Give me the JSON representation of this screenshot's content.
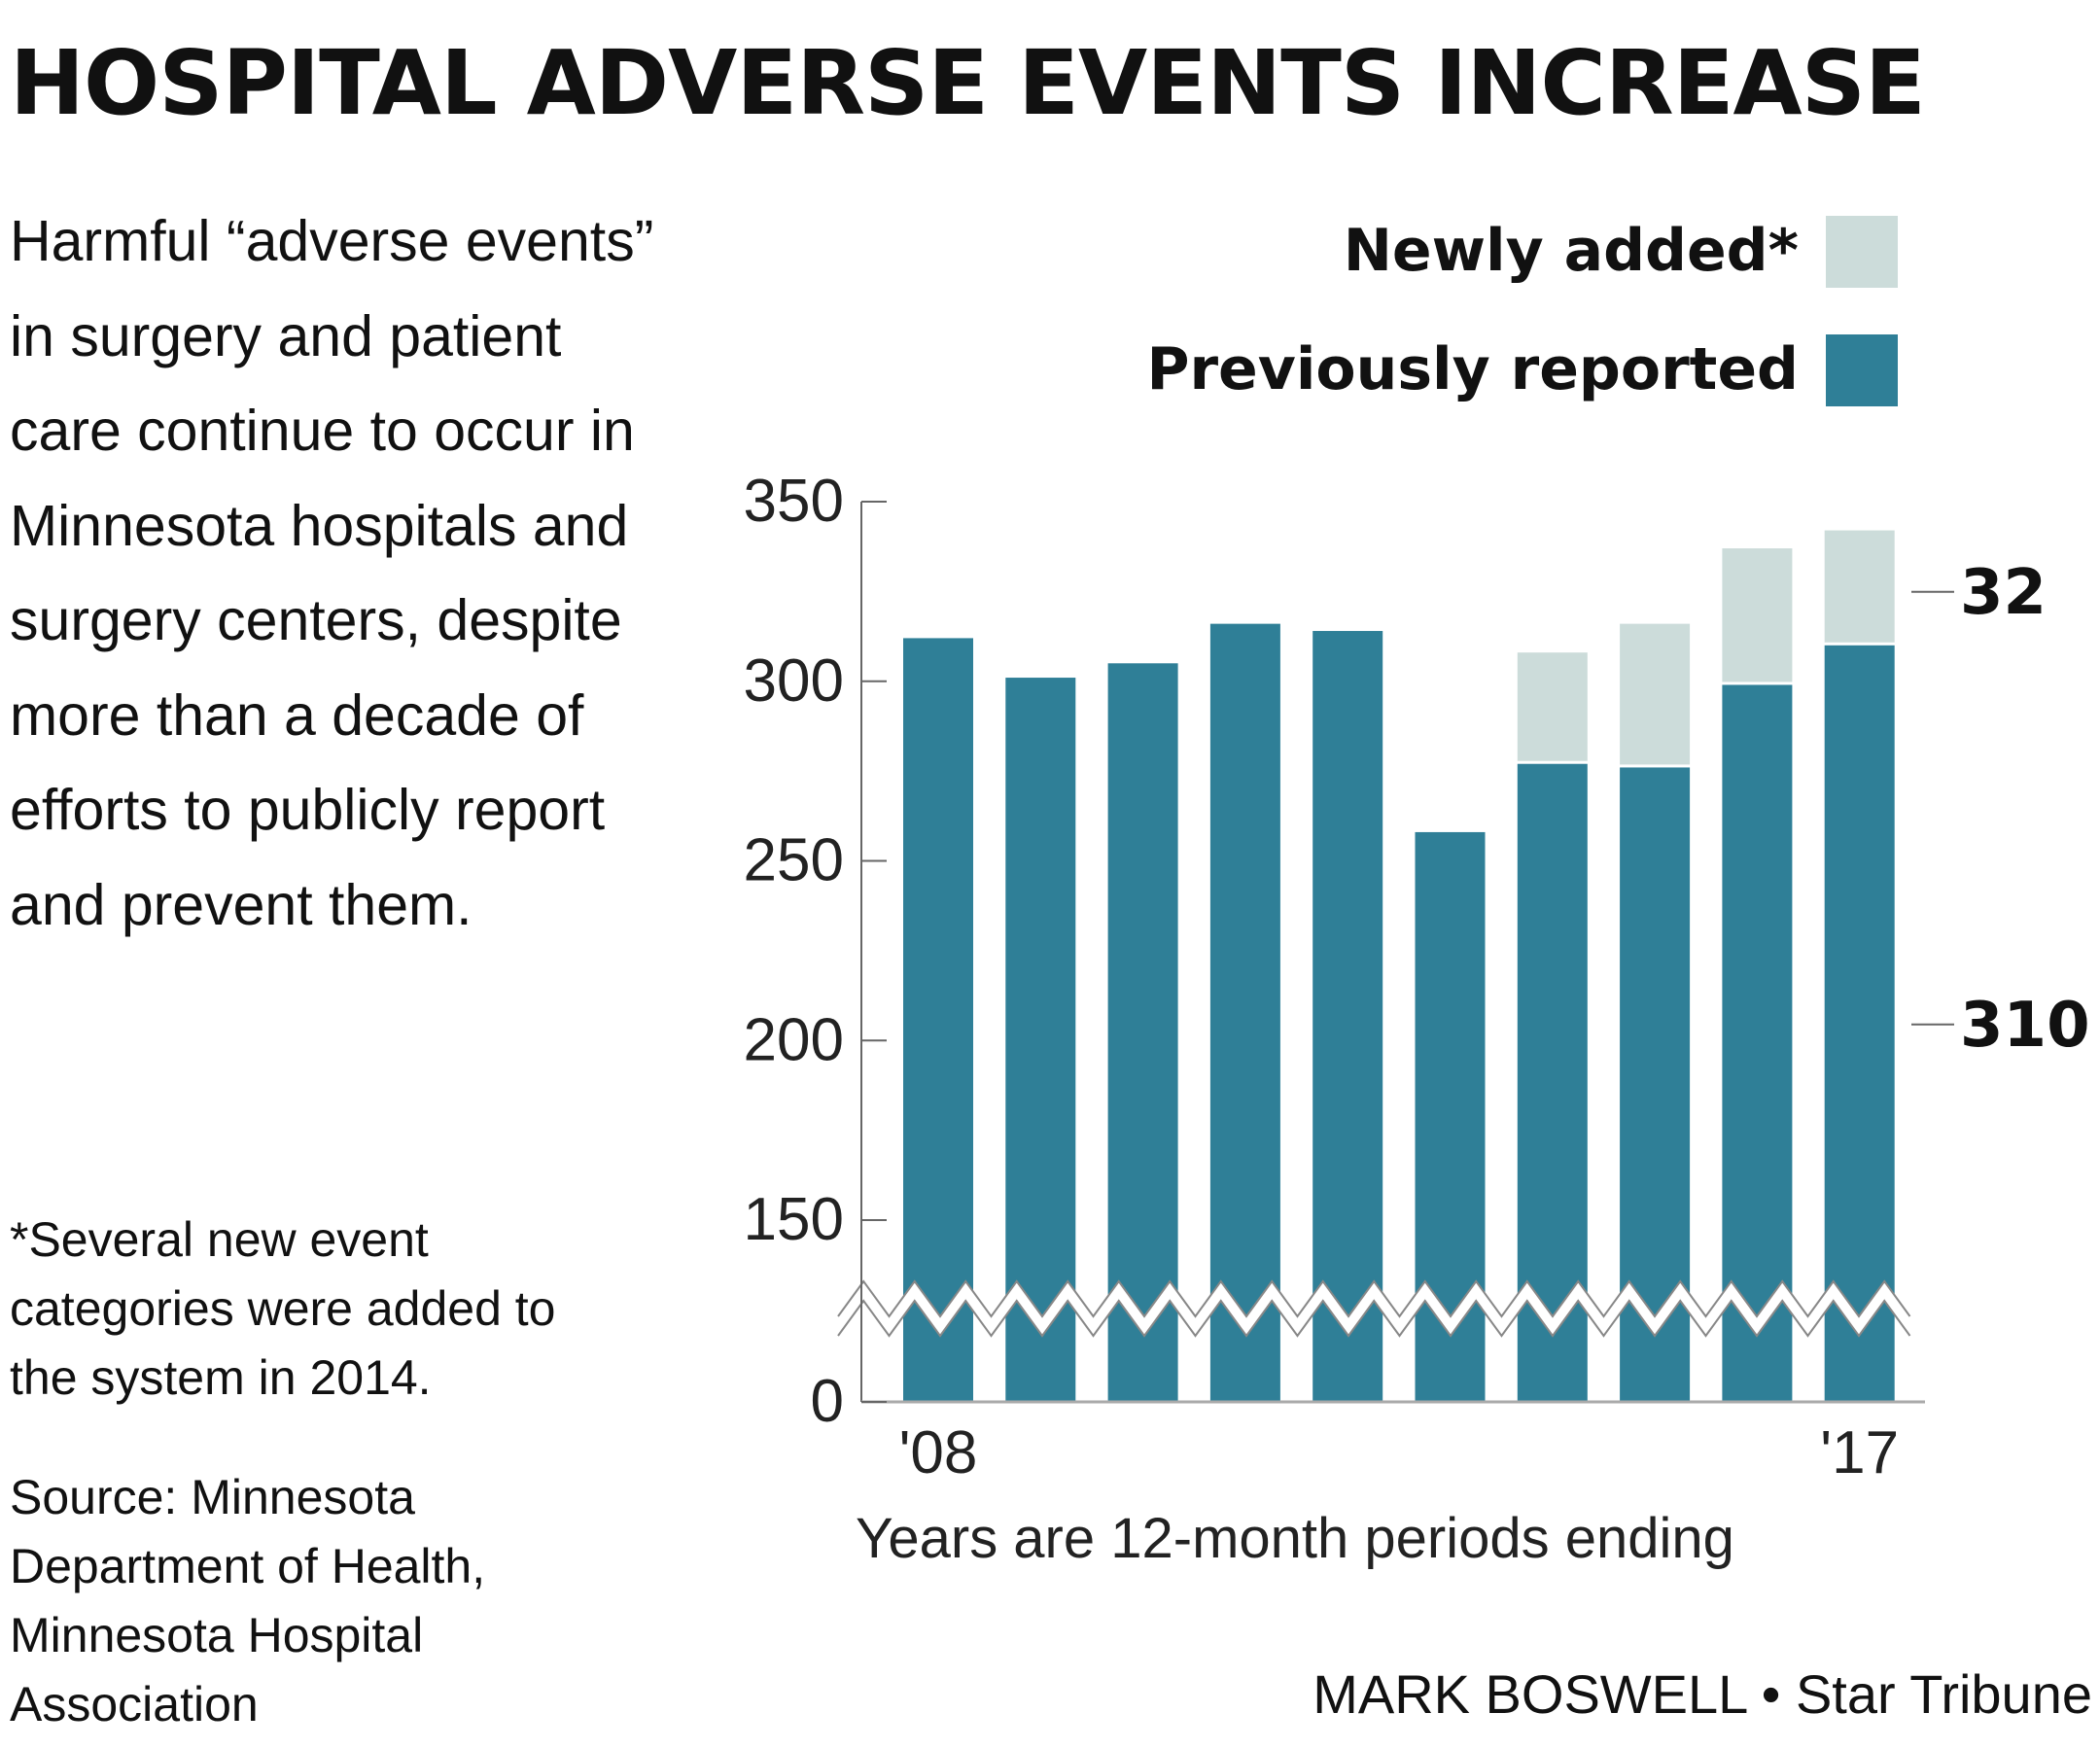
{
  "headline": "HOSPITAL ADVERSE EVENTS INCREASE",
  "description": "Harmful “adverse events” in surgery and patient care continue to occur in Minnesota hospitals and surgery centers, despite more than a decade of efforts to publicly report and prevent them.",
  "footnote": "*Several new event categories were added to the system in 2014.",
  "source": "Source: Minnesota Department of Health, Minnesota Hospital Association",
  "credit": "MARK BOSWELL • Star Tribune",
  "x_note": "Years are 12-month periods ending",
  "colors": {
    "previously_reported": "#2f7f97",
    "newly_added": "#ccdcda",
    "axis": "#666666"
  },
  "chart_data": {
    "type": "bar",
    "stacked": true,
    "axis_break": true,
    "categories": [
      "'08",
      "",
      "",
      "",
      "",
      "",
      "",
      "",
      "",
      "'17"
    ],
    "x_tick_labels": [
      "'08",
      "'17"
    ],
    "series": [
      {
        "name": "Previously reported",
        "values": [
          312,
          301,
          305,
          316,
          314,
          258,
          277,
          276,
          299,
          310
        ]
      },
      {
        "name": "Newly added*",
        "values": [
          0,
          0,
          0,
          0,
          0,
          0,
          31,
          40,
          38,
          32
        ]
      }
    ],
    "legend": [
      "Newly added*",
      "Previously reported"
    ],
    "legend_position": "top-right",
    "y_ticks": [
      0,
      150,
      200,
      250,
      300,
      350
    ],
    "ylim": [
      0,
      350
    ],
    "callouts": [
      {
        "label": "32",
        "series": "Newly added*",
        "category_index": 9
      },
      {
        "label": "310",
        "series": "Previously reported",
        "category_index": 9
      }
    ],
    "title": "HOSPITAL ADVERSE EVENTS INCREASE",
    "xlabel": "Years are 12-month periods ending",
    "ylabel": "",
    "grid": false
  }
}
